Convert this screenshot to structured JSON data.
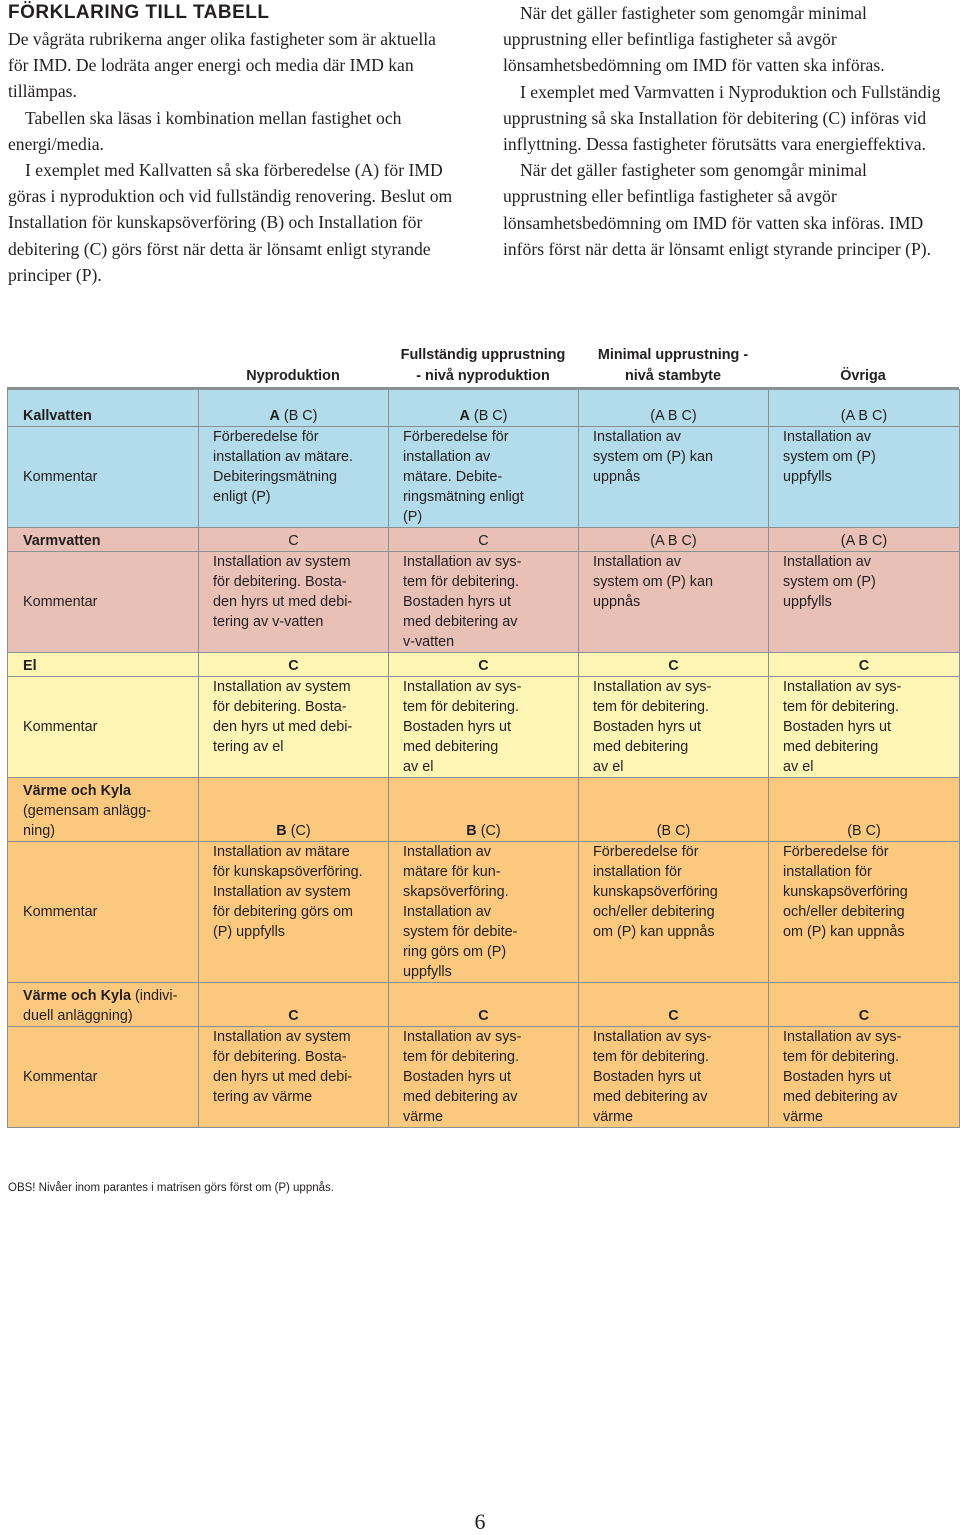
{
  "left_column": {
    "heading": "FÖRKLARING TILL TABELL",
    "p1": "De vågräta rubrikerna anger olika fastigheter som är aktuella för IMD. De lodräta anger energi och media där IMD kan tillämpas.",
    "p2": "Tabellen ska läsas i kombination mellan fastighet och energi/media.",
    "p3": "I exemplet med Kallvatten så ska förberedelse (A) för IMD göras i nyproduktion och vid fullständig renovering. Beslut om Installation för kunskapsöverföring (B) och Installation för debitering (C) görs först när detta är lönsamt enligt styrande principer (P)."
  },
  "right_column": {
    "p1": "När det gäller fastigheter som genomgår minimal upprustning eller befintliga fastigheter så avgör lönsamhetsbedömning om IMD för vatten ska införas.",
    "p2": "I exemplet med Varmvatten i Nyproduktion och Fullständig upprustning så ska Installation för debitering (C) införas vid inflyttning. Dessa fastigheter förutsätts vara energieffektiva.",
    "p3": "När det gäller fastigheter som genomgår minimal upprustning eller befintliga fastigheter så avgör lönsamhetsbedömning om IMD för vatten ska införas. IMD införs först när detta är lönsamt enligt styrande principer (P)."
  },
  "column_headers": {
    "nyproduktion": "Nyproduktion",
    "fullstandig_1": "Fullständig upprustning",
    "fullstandig_2": "- nivå nyproduktion",
    "minimal_1": "Minimal upprustning -",
    "minimal_2": "nivå stambyte",
    "ovriga": "Övriga"
  },
  "kommentar_label": "Kommentar",
  "rows": {
    "kallvatten": {
      "label": "Kallvatten",
      "v1_bold": "A",
      "v1_rest": " (B C)",
      "v2_bold": "A",
      "v2_rest": " (B C)",
      "v3": "(A B C)",
      "v4": "(A B C)",
      "c1": [
        "Förberedelse för",
        "installation av mätare.",
        "Debiteringsmätning",
        "enligt (P)"
      ],
      "c2": [
        "Förberedelse för",
        "installation av",
        "mätare. Debite-",
        "ringsmätning enligt",
        "(P)"
      ],
      "c3": [
        "Installation av",
        "system om (P) kan",
        "uppnås"
      ],
      "c4": [
        "Installation av",
        "system om (P)",
        "uppfylls"
      ]
    },
    "varmvatten": {
      "label": "Varmvatten",
      "v1": "C",
      "v2": "C",
      "v3": "(A B C)",
      "v4": "(A B C)",
      "c1": [
        "Installation av system",
        "för debitering. Bosta-",
        "den hyrs ut med debi-",
        "tering av v-vatten"
      ],
      "c2": [
        "Installation av sys-",
        "tem för debitering.",
        "Bostaden hyrs ut",
        "med debitering av",
        "v-vatten"
      ],
      "c3": [
        "Installation av",
        "system om (P) kan",
        "uppnås"
      ],
      "c4": [
        "Installation av",
        "system om (P)",
        "uppfylls"
      ]
    },
    "el": {
      "label": "El",
      "v1": "C",
      "v2": "C",
      "v3": "C",
      "v4": "C",
      "c1": [
        "Installation av system",
        "för debitering. Bosta-",
        "den hyrs ut med debi-",
        "tering av el"
      ],
      "c2": [
        "Installation av sys-",
        "tem för debitering.",
        "Bostaden hyrs ut",
        "med debitering",
        "av el"
      ],
      "c3": [
        "Installation av sys-",
        "tem för debitering.",
        "Bostaden hyrs ut",
        "med debitering",
        "av el"
      ],
      "c4": [
        "Installation av sys-",
        "tem för debitering.",
        "Bostaden hyrs ut",
        "med debitering",
        "av el"
      ]
    },
    "varme_gemensam": {
      "label_bold": "Värme och Kyla",
      "label_rest": [
        "(gemensam anlägg-",
        "ning)"
      ],
      "v1_bold": "B",
      "v1_rest": " (C)",
      "v2_bold": "B",
      "v2_rest": " (C)",
      "v3": "(B C)",
      "v4": "(B C)",
      "c1": [
        "Installation av mätare",
        "för kunskapsöverföring.",
        "Installation av system",
        "för debitering görs om",
        "(P) uppfylls"
      ],
      "c2": [
        "Installation av",
        "mätare för kun-",
        "skapsöverföring.",
        "Installation av",
        "system för debite-",
        "ring görs om (P)",
        "uppfylls"
      ],
      "c3": [
        "Förberedelse för",
        "installation för",
        "kunskapsöverföring",
        "och/eller debitering",
        "om (P) kan uppnås"
      ],
      "c4": [
        "Förberedelse för",
        "installation för",
        "kunskapsöverföring",
        "och/eller debitering",
        "om (P) kan uppnås"
      ]
    },
    "varme_individuell": {
      "label_bold": "Värme och Kyla",
      "label_rest1": " (indivi-",
      "label_rest2": "duell anläggning)",
      "v1": "C",
      "v2": "C",
      "v3": "C",
      "v4": "C",
      "c1": [
        "Installation av system",
        "för debitering. Bosta-",
        "den hyrs ut med debi-",
        "tering av värme"
      ],
      "c2": [
        "Installation av sys-",
        "tem för debitering.",
        "Bostaden hyrs ut",
        "med debitering av",
        "värme"
      ],
      "c3": [
        "Installation av sys-",
        "tem för debitering.",
        "Bostaden hyrs ut",
        "med debitering av",
        "värme"
      ],
      "c4": [
        "Installation av sys-",
        "tem för debitering.",
        "Bostaden hyrs ut",
        "med debitering av",
        "värme"
      ]
    }
  },
  "footnote": "OBS! Nivåer inom parantes i matrisen görs först om (P) uppnås.",
  "page_number": "6",
  "colors": {
    "kallvatten": "#b2dcea",
    "varmvatten": "#e9c0b5",
    "el": "#fdf5b3",
    "varme": "#fac97d",
    "border": "#8a8f94"
  }
}
